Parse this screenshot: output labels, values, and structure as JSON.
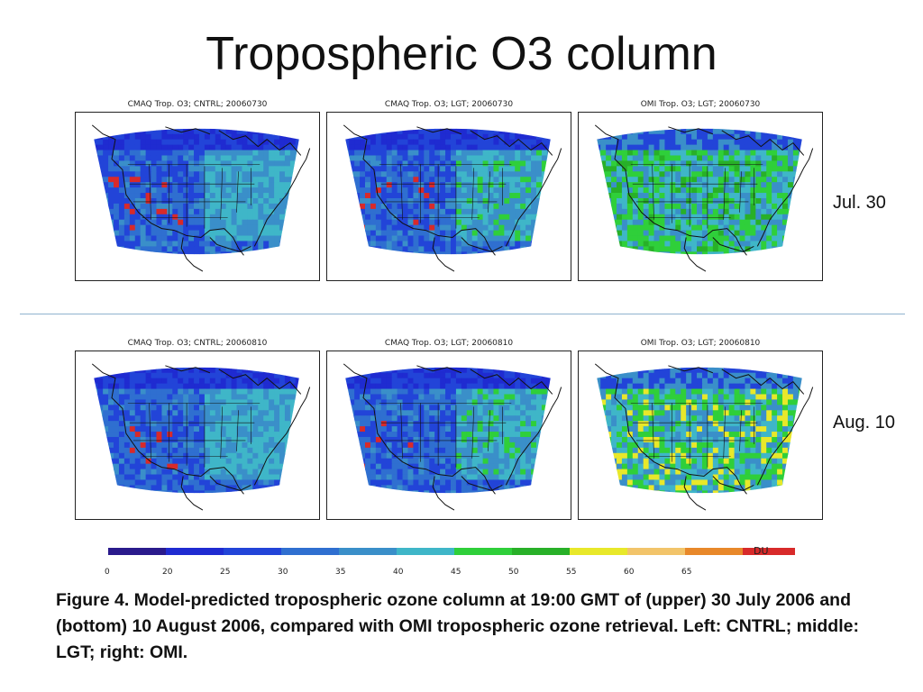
{
  "title": "Tropospheric O3 column",
  "rows": [
    {
      "label": "Jul. 30",
      "panels": [
        {
          "title": "CMAQ Trop. O3; CNTRL; 20060730",
          "source": "cntrl"
        },
        {
          "title": "CMAQ Trop. O3; LGT; 20060730",
          "source": "lgt"
        },
        {
          "title": "OMI Trop. O3; LGT; 20060730",
          "source": "omi"
        }
      ]
    },
    {
      "label": "Aug. 10",
      "panels": [
        {
          "title": "CMAQ Trop. O3; CNTRL; 20060810",
          "source": "cntrl"
        },
        {
          "title": "CMAQ Trop. O3; LGT; 20060810",
          "source": "lgt"
        },
        {
          "title": "OMI Trop. O3; LGT; 20060810",
          "source": "omi"
        }
      ]
    }
  ],
  "colorbar": {
    "unit": "DU",
    "ticks": [
      "0",
      "20",
      "25",
      "30",
      "35",
      "40",
      "45",
      "50",
      "55",
      "60",
      "65"
    ],
    "colors": [
      "#2a1a8c",
      "#1f2bd1",
      "#2244d8",
      "#2f6fd0",
      "#3a8fc9",
      "#3fb6c8",
      "#2fcf3a",
      "#28b028",
      "#e8e82a",
      "#f2c46a",
      "#e8882a",
      "#d82a2a"
    ]
  },
  "caption": "Figure 4. Model-predicted tropospheric ozone column at 19:00 GMT of (upper) 30 July 2006 and (bottom) 10 August 2006, compared with OMI tropospheric ozone retrieval. Left: CNTRL; middle: LGT; right: OMI."
}
